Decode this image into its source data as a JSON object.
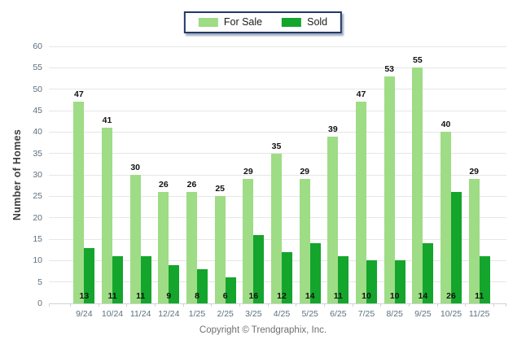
{
  "legend": {
    "for_sale_label": "For Sale",
    "sold_label": "Sold"
  },
  "footer": {
    "copyright": "Copyright © Trendgraphix, Inc."
  },
  "colors": {
    "for_sale": "#9edc85",
    "sold": "#14a52c",
    "grid": "#e6e6e6",
    "legend_border": "#1f3a66",
    "axis_text": "#5c6f80"
  },
  "chart_data": {
    "type": "bar",
    "categories": [
      "9/24",
      "10/24",
      "11/24",
      "12/24",
      "1/25",
      "2/25",
      "3/25",
      "4/25",
      "5/25",
      "6/25",
      "7/25",
      "8/25",
      "9/25",
      "10/25",
      "11/25"
    ],
    "series": [
      {
        "name": "For Sale",
        "color": "#9edc85",
        "values": [
          47,
          41,
          30,
          26,
          26,
          25,
          29,
          35,
          29,
          39,
          47,
          53,
          55,
          40,
          29
        ]
      },
      {
        "name": "Sold",
        "color": "#14a52c",
        "values": [
          13,
          11,
          11,
          9,
          8,
          6,
          16,
          12,
          14,
          11,
          10,
          10,
          14,
          26,
          11
        ]
      }
    ],
    "xlabel": "",
    "ylabel": "Number of Homes",
    "ylim": [
      0,
      60
    ],
    "ytick_step": 5,
    "grid": true,
    "legend_position": "top-center",
    "value_labels": {
      "for_sale": "above-bar",
      "sold": "inside-bar-bottom"
    }
  }
}
